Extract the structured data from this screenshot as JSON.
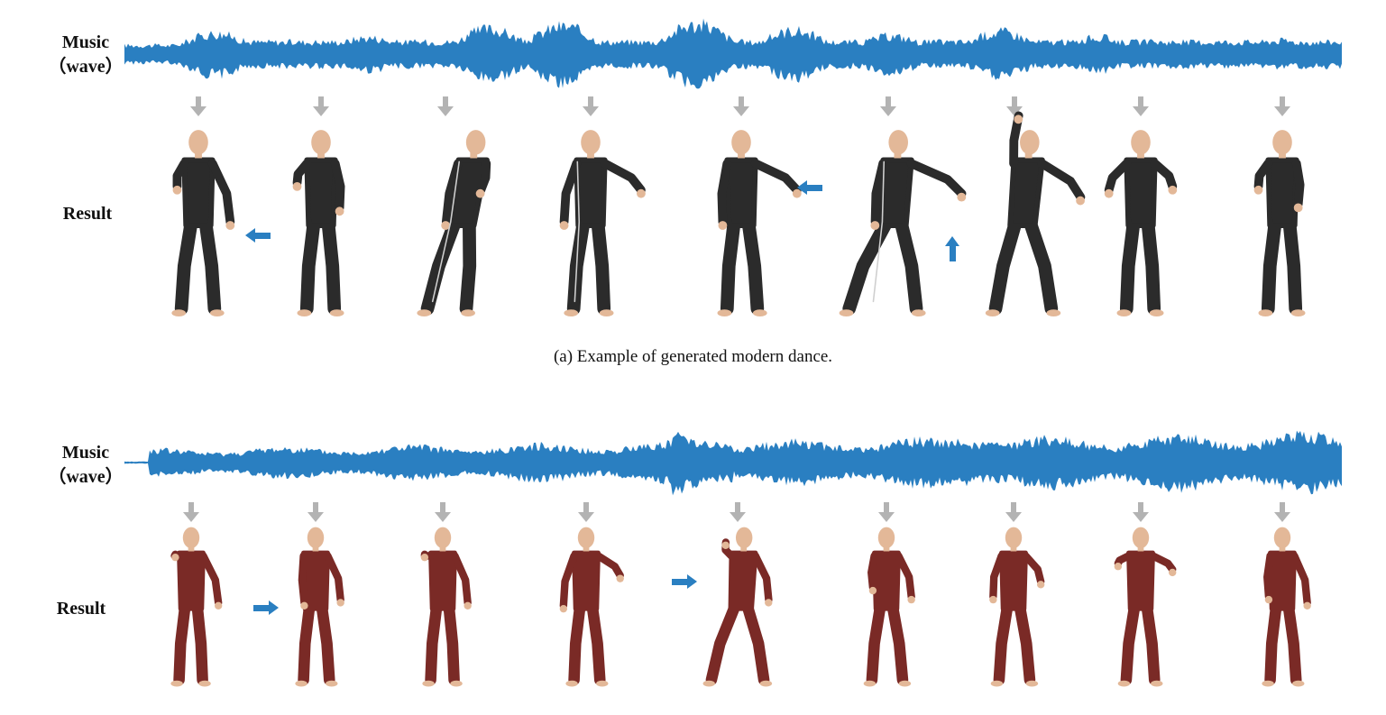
{
  "panel_a": {
    "music_label_line1": "Music",
    "music_label_line2": "（wave）",
    "result_label": "Result",
    "caption": "(a)  Example of generated modern dance."
  },
  "panel_b": {
    "music_label_line1": "Music",
    "music_label_line2": "（wave）",
    "result_label": "Result"
  },
  "colors": {
    "wave": "#2a7fc1",
    "down_arrow": "#b3b3b3",
    "highlight_arrow": "#2a7fc1",
    "suit_a": "#2b2b2b",
    "suit_b": "#7a2a26",
    "skin": "#e3b898"
  },
  "icons": {
    "down_arrow": "arrow-down-icon",
    "highlight_arrow": "arrow-icon"
  }
}
